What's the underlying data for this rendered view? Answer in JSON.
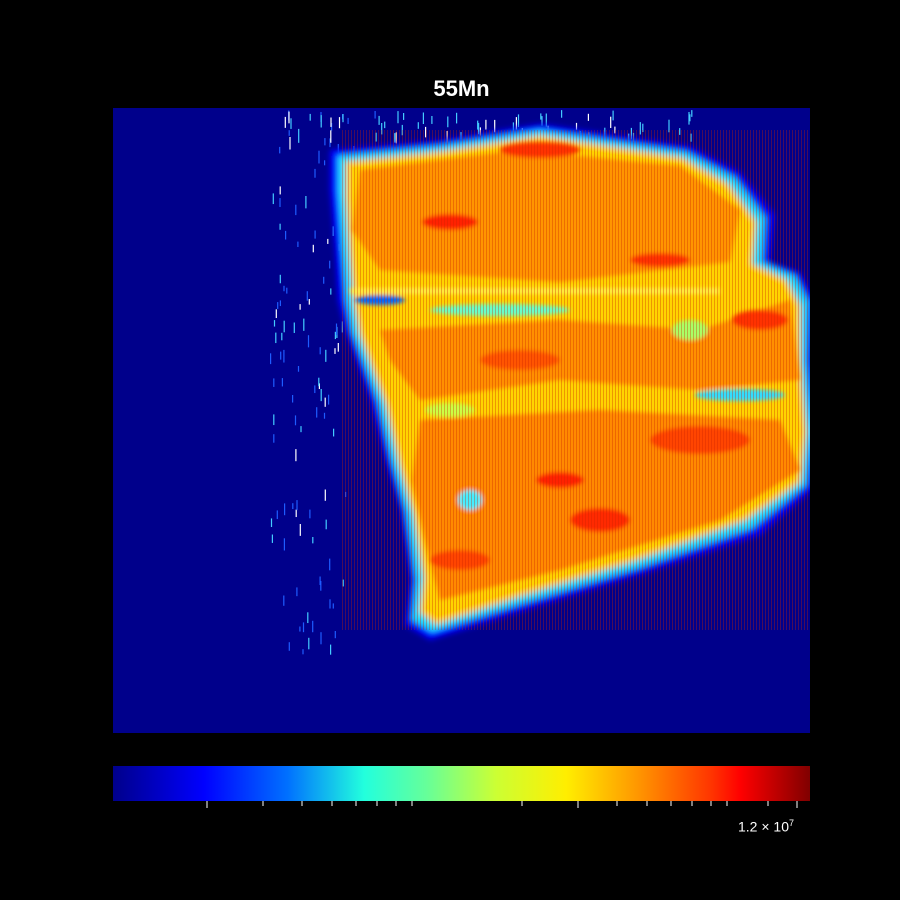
{
  "chart_data": {
    "type": "heatmap",
    "title": "55Mn",
    "xlabel": "",
    "ylabel": "",
    "colormap": "jet",
    "colorbar": {
      "orientation": "horizontal",
      "position": "bottom",
      "scale": "log",
      "label_mantissa": "1.2 × 10",
      "label_exponent": "7",
      "label_value": 12000000
    },
    "grid": false,
    "legend": "none"
  },
  "colors": {
    "background": "#000000",
    "text": "#ffffff",
    "low": "#00008b",
    "high": "#800000"
  }
}
